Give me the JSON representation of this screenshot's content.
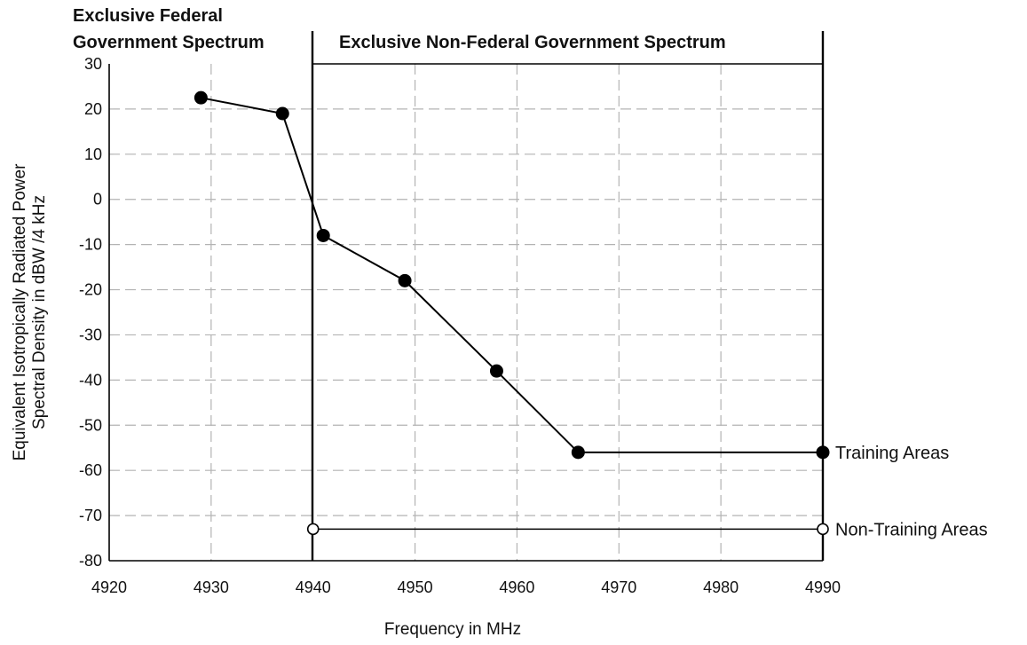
{
  "chart_data": {
    "type": "line",
    "xlabel": "Frequency in MHz",
    "ylabel_line1": "Equivalent Isotropically Radiated Power",
    "ylabel_line2": "Spectral Density in  dBW /4 kHz",
    "xlim": [
      4920,
      4990
    ],
    "ylim": [
      -80,
      30
    ],
    "x_ticks": [
      "4920",
      "4930",
      "4940",
      "4950",
      "4960",
      "4970",
      "4980",
      "4990"
    ],
    "y_ticks": [
      "30",
      "20",
      "10",
      "0",
      "-10",
      "-20",
      "-30",
      "-40",
      "-50",
      "-60",
      "-70",
      "-80"
    ],
    "grid": true,
    "regions": [
      {
        "label_line1": "Exclusive Federal",
        "label_line2": "Government Spectrum",
        "x_range": [
          4920,
          4940
        ]
      },
      {
        "label_line1": "Exclusive Non-Federal Government Spectrum",
        "label_line2": "",
        "x_range": [
          4940,
          4990
        ]
      }
    ],
    "series": [
      {
        "name": "Training Areas",
        "marker": "filled-circle",
        "points": [
          {
            "x": 4929,
            "y": 22.5
          },
          {
            "x": 4937,
            "y": 19
          },
          {
            "x": 4941,
            "y": -8
          },
          {
            "x": 4949,
            "y": -18
          },
          {
            "x": 4958,
            "y": -38
          },
          {
            "x": 4966,
            "y": -56
          },
          {
            "x": 4990,
            "y": -56
          }
        ]
      },
      {
        "name": "Non-Training Areas",
        "marker": "open-circle",
        "points": [
          {
            "x": 4940,
            "y": -73
          },
          {
            "x": 4990,
            "y": -73
          }
        ]
      }
    ],
    "colors": {
      "line": "#000000",
      "grid": "#b3b3b3",
      "background": "#ffffff"
    }
  }
}
